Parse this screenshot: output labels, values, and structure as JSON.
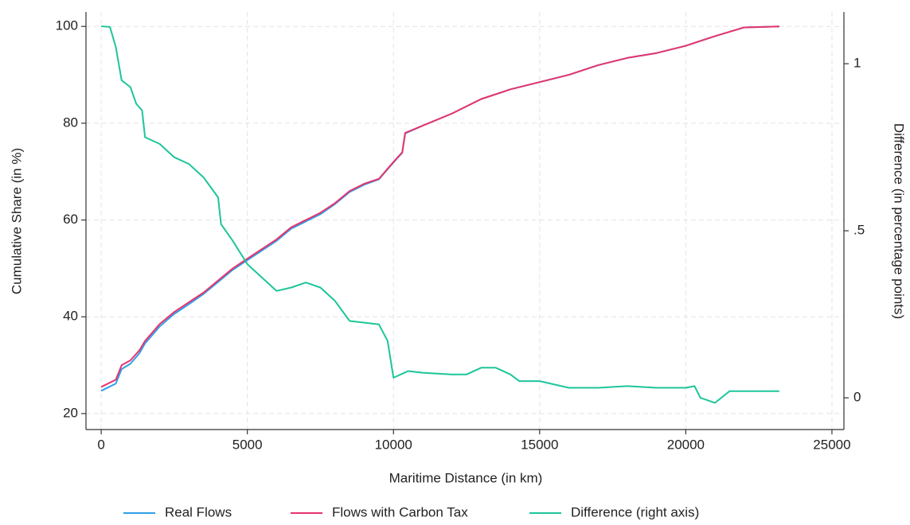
{
  "chart_data": {
    "type": "line",
    "xlabel": "Maritime Distance (in km)",
    "ylabel": "Cumulative Share (in %)",
    "y2label": "Difference (in percentage points)",
    "xlim": [
      -520,
      25410
    ],
    "xticks": [
      0,
      5000,
      10000,
      15000,
      20000,
      25000
    ],
    "ylim": [
      16.7,
      103
    ],
    "yticks": [
      20,
      40,
      60,
      80,
      100
    ],
    "y2lim": [
      -0.095,
      1.155
    ],
    "y2ticks": [
      0,
      {
        "value": 0.5,
        "label": ".5"
      },
      1
    ],
    "grid": true,
    "legend": "bottom",
    "series": [
      {
        "name": "Real Flows",
        "color": "#2f9fe8",
        "x": [
          0,
          500,
          700,
          1000,
          1300,
          1500,
          2000,
          2500,
          3000,
          3500,
          4000,
          4500,
          5000,
          5500,
          6000,
          6500,
          7000,
          7500,
          8000,
          8500,
          9000,
          9500,
          10000,
          10300,
          10400,
          11000,
          12000,
          13000,
          14000,
          15000,
          16000,
          17000,
          18000,
          19000,
          20000,
          21000,
          22000,
          23200
        ],
        "values": [
          24.7,
          26.2,
          29.2,
          30.3,
          32.4,
          34.5,
          38.0,
          40.6,
          42.6,
          44.7,
          47.2,
          49.7,
          51.7,
          53.7,
          55.7,
          58.2,
          59.7,
          61.2,
          63.3,
          65.8,
          67.3,
          68.4,
          71.9,
          73.9,
          77.9,
          79.5,
          82,
          85,
          87,
          88.5,
          90,
          92,
          93.5,
          94.5,
          96,
          98,
          99.8,
          100
        ]
      },
      {
        "name": "Flows with Carbon Tax",
        "color": "#e8336e",
        "x": [
          0,
          500,
          700,
          1000,
          1300,
          1500,
          2000,
          2500,
          3000,
          3500,
          4000,
          4500,
          5000,
          5500,
          6000,
          6500,
          7000,
          7500,
          8000,
          8500,
          9000,
          9500,
          10000,
          10300,
          10400,
          11000,
          12000,
          13000,
          14000,
          15000,
          16000,
          17000,
          18000,
          19000,
          20000,
          21000,
          22000,
          23200
        ],
        "values": [
          25.5,
          27,
          30,
          31,
          33,
          35,
          38.5,
          41,
          43,
          45,
          47.5,
          50,
          52,
          54,
          56,
          58.5,
          60,
          61.5,
          63.5,
          66,
          67.5,
          68.5,
          72,
          74,
          78,
          79.5,
          82,
          85,
          87,
          88.5,
          90,
          92,
          93.5,
          94.5,
          96,
          98,
          99.8,
          100
        ]
      },
      {
        "name": "Difference (right axis)",
        "color": "#1dc59a",
        "axis": "y2",
        "x": [
          0,
          300,
          500,
          700,
          1000,
          1200,
          1400,
          1500,
          2000,
          2500,
          3000,
          3500,
          4000,
          4100,
          4500,
          5000,
          5500,
          6000,
          6500,
          7000,
          7500,
          8000,
          8500,
          9500,
          9800,
          10000,
          10500,
          11000,
          12000,
          12500,
          13000,
          13500,
          14000,
          14300,
          15000,
          16000,
          17000,
          18000,
          19000,
          20000,
          20300,
          20500,
          21000,
          21500,
          22000,
          23200
        ],
        "values": [
          1.112,
          1.11,
          1.05,
          0.95,
          0.93,
          0.88,
          0.86,
          0.78,
          0.76,
          0.72,
          0.7,
          0.66,
          0.6,
          0.52,
          0.47,
          0.4,
          0.36,
          0.32,
          0.33,
          0.345,
          0.33,
          0.29,
          0.23,
          0.22,
          0.17,
          0.06,
          0.08,
          0.075,
          0.07,
          0.07,
          0.09,
          0.09,
          0.07,
          0.05,
          0.05,
          0.03,
          0.03,
          0.035,
          0.03,
          0.03,
          0.035,
          0,
          -0.015,
          0.02,
          0.02,
          0.02
        ]
      }
    ]
  }
}
